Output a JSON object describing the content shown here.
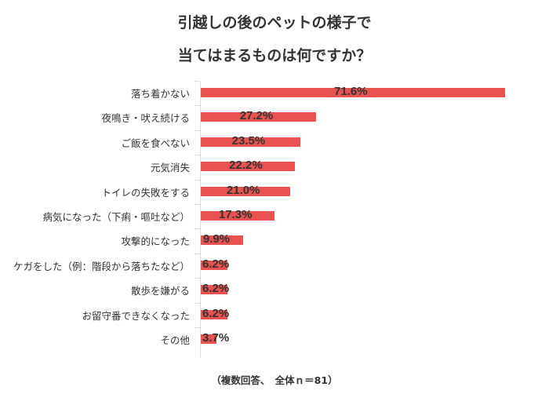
{
  "title_line1": "引越しの後のペットの様子で",
  "title_line2": "当てはまるものは何ですか？",
  "footer": "（複数回答、　全体ｎ＝81）",
  "colors": {
    "bar": "#e9534f",
    "axis": "#dcdcdc",
    "text": "#333333"
  },
  "chart_data": {
    "type": "bar",
    "orientation": "horizontal",
    "title": "引越しの後のペットの様子で当てはまるものは何ですか？",
    "categories": [
      "落ち着かない",
      "夜鳴き・吠え続ける",
      "ご飯を食べない",
      "元気消失",
      "トイレの失敗をする",
      "病気になった（下痢・嘔吐など）",
      "攻撃的になった",
      "ケガをした（例：階段から落ちたなど）",
      "散歩を嫌がる",
      "お留守番できなくなった",
      "その他"
    ],
    "values": [
      71.6,
      27.2,
      23.5,
      22.2,
      21.0,
      17.3,
      9.9,
      6.2,
      6.2,
      6.2,
      3.7
    ],
    "value_labels": [
      "71.6%",
      "27.2%",
      "23.5%",
      "22.2%",
      "21.0%",
      "17.3%",
      "9.9%",
      "6.2%",
      "6.2%",
      "6.2%",
      "3.7%"
    ],
    "xlabel": "",
    "ylabel": "",
    "unit": "%",
    "note": "（複数回答、　全体ｎ＝81）",
    "grid": false,
    "legend": "none"
  }
}
